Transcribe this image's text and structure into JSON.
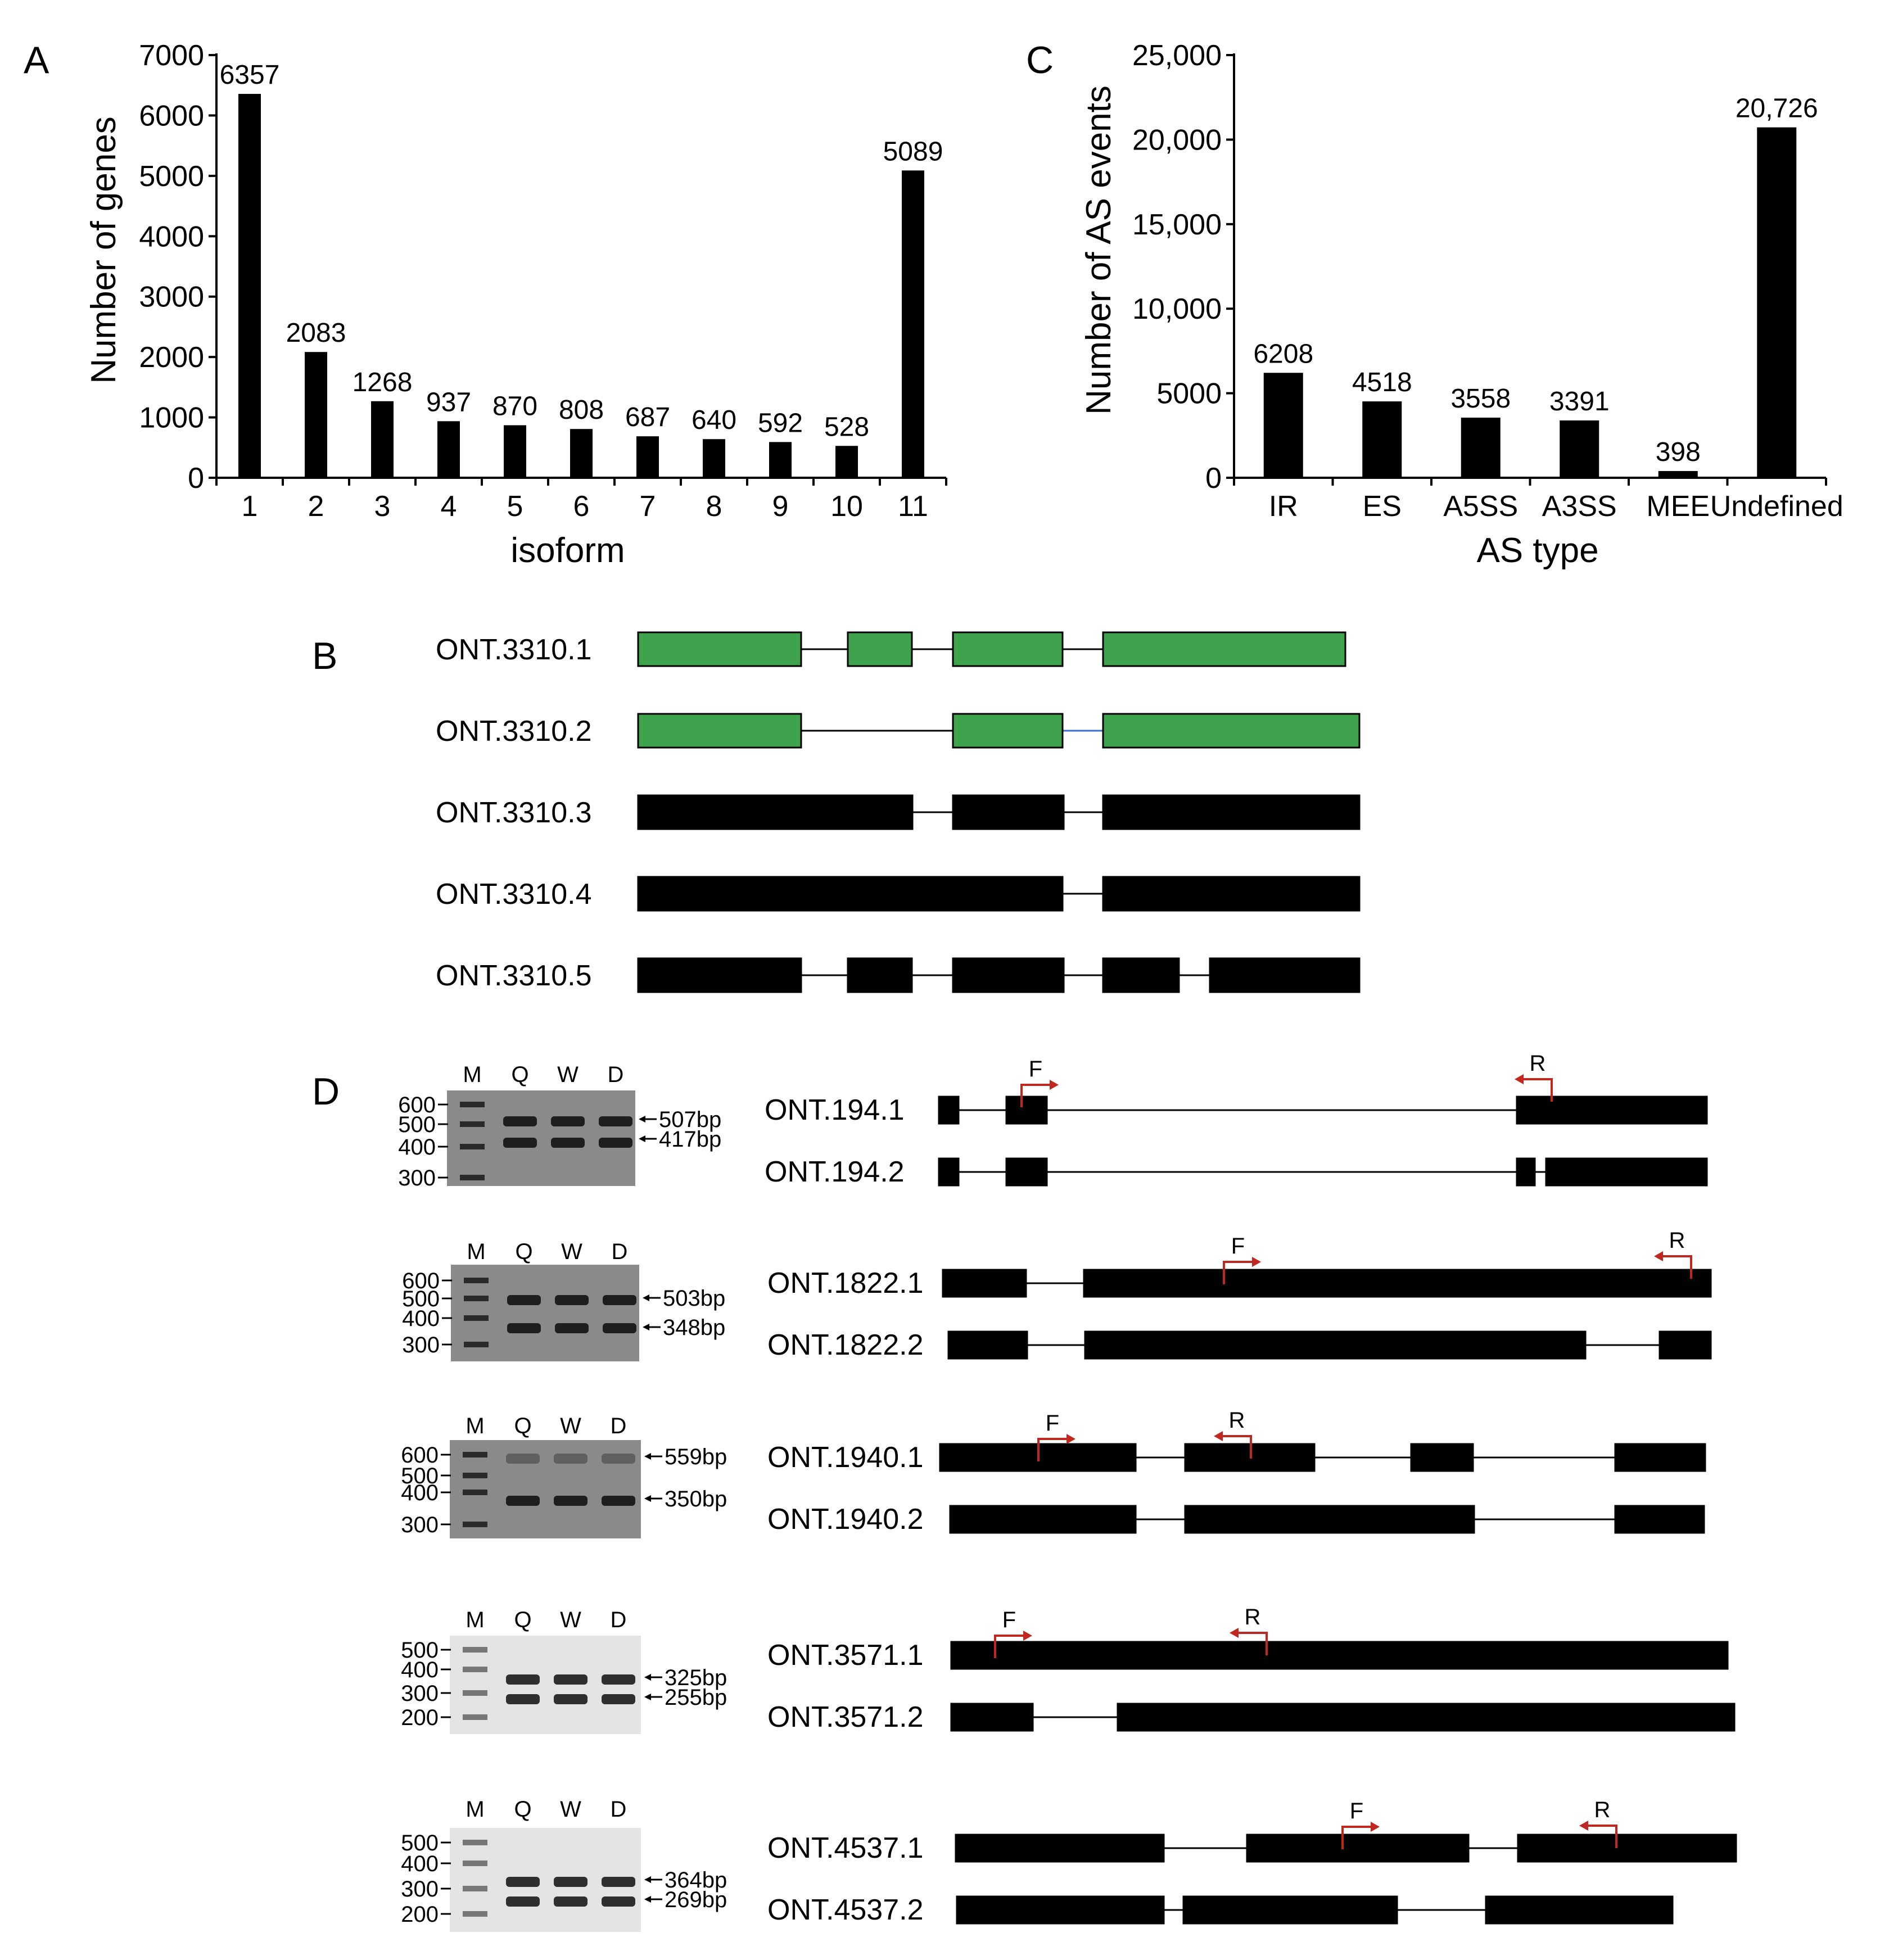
{
  "panels": {
    "A": "A",
    "B": "B",
    "C": "C",
    "D": "D"
  },
  "colors": {
    "bar": "#000000",
    "exon_green": "#3fa34d",
    "exon_black": "#000000",
    "primer": "#c0281f"
  },
  "chart_data": [
    {
      "type": "bar",
      "panel": "A",
      "categories": [
        "1",
        "2",
        "3",
        "4",
        "5",
        "6",
        "7",
        "8",
        "9",
        "10",
        "11"
      ],
      "values": [
        6357,
        2083,
        1268,
        937,
        870,
        808,
        687,
        640,
        592,
        528,
        5089
      ],
      "value_labels": [
        "6357",
        "2083",
        "1268",
        "937",
        "870",
        "808",
        "687",
        "640",
        "592",
        "528",
        "5089"
      ],
      "xlabel": "isoform",
      "ylabel": "Number of genes",
      "ylim": [
        0,
        7000
      ],
      "yticks": [
        0,
        1000,
        2000,
        3000,
        4000,
        5000,
        6000,
        7000
      ],
      "ytick_labels": [
        "0",
        "1000",
        "2000",
        "3000",
        "4000",
        "5000",
        "6000",
        "7000"
      ],
      "grid": false
    },
    {
      "type": "bar",
      "panel": "C",
      "categories": [
        "IR",
        "ES",
        "A5SS",
        "A3SS",
        "MEE",
        "Undefined"
      ],
      "values": [
        6208,
        4518,
        3558,
        3391,
        398,
        20726
      ],
      "value_labels": [
        "6208",
        "4518",
        "3558",
        "3391",
        "398",
        "20,726"
      ],
      "xlabel": "AS type",
      "ylabel": "Number of AS events",
      "ylim": [
        0,
        25000
      ],
      "yticks": [
        0,
        5000,
        10000,
        15000,
        20000,
        25000
      ],
      "ytick_labels": [
        "0",
        "5000",
        "10,000",
        "15,000",
        "20,000",
        "25,000"
      ],
      "grid": false
    }
  ],
  "panelB": {
    "isoforms": [
      {
        "name": "ONT.3310.1",
        "color": "green"
      },
      {
        "name": "ONT.3310.2",
        "color": "green"
      },
      {
        "name": "ONT.3310.3",
        "color": "black"
      },
      {
        "name": "ONT.3310.4",
        "color": "black"
      },
      {
        "name": "ONT.3310.5",
        "color": "black"
      }
    ]
  },
  "panelD": {
    "lane_labels": [
      "M",
      "Q",
      "W",
      "D"
    ],
    "primer_f": "F",
    "primer_r": "R",
    "groups": [
      {
        "ladder": [
          "600",
          "500",
          "400",
          "300"
        ],
        "bands": [
          "507bp",
          "417bp"
        ],
        "isoforms": [
          "ONT.194.1",
          "ONT.194.2"
        ]
      },
      {
        "ladder": [
          "600",
          "500",
          "400",
          "300"
        ],
        "bands": [
          "503bp",
          "348bp"
        ],
        "isoforms": [
          "ONT.1822.1",
          "ONT.1822.2"
        ]
      },
      {
        "ladder": [
          "600",
          "500",
          "400",
          "300"
        ],
        "bands": [
          "559bp",
          "350bp"
        ],
        "isoforms": [
          "ONT.1940.1",
          "ONT.1940.2"
        ]
      },
      {
        "ladder": [
          "500",
          "400",
          "300",
          "200"
        ],
        "bands": [
          "325bp",
          "255bp"
        ],
        "isoforms": [
          "ONT.3571.1",
          "ONT.3571.2"
        ]
      },
      {
        "ladder": [
          "500",
          "400",
          "300",
          "200"
        ],
        "bands": [
          "364bp",
          "269bp"
        ],
        "isoforms": [
          "ONT.4537.1",
          "ONT.4537.2"
        ]
      }
    ]
  }
}
